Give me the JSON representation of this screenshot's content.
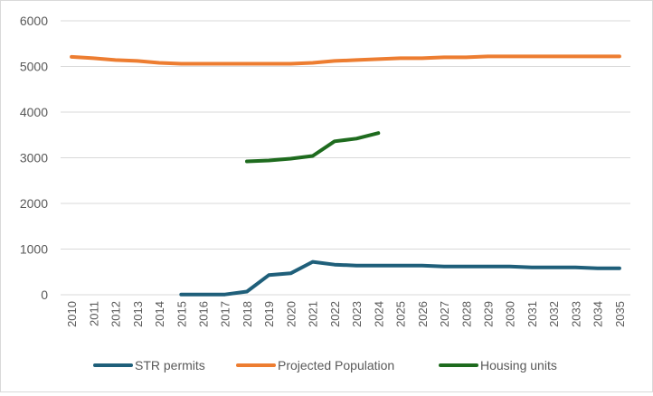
{
  "chart_data": {
    "type": "line",
    "title": "",
    "xlabel": "",
    "ylabel": "",
    "ylim": [
      0,
      6000
    ],
    "y_ticks": [
      "0",
      "1000",
      "2000",
      "3000",
      "4000",
      "5000",
      "6000"
    ],
    "categories": [
      "2010",
      "2011",
      "2012",
      "2013",
      "2014",
      "2015",
      "2016",
      "2017",
      "2018",
      "2019",
      "2020",
      "2021",
      "2022",
      "2023",
      "2024",
      "2025",
      "2026",
      "2027",
      "2028",
      "2029",
      "2030",
      "2031",
      "2032",
      "2033",
      "2034",
      "2035"
    ],
    "grid": "horizontal",
    "legend_position": "bottom",
    "series": [
      {
        "name": "STR permits",
        "color": "#1f5f7a",
        "values": [
          null,
          null,
          null,
          null,
          null,
          5,
          5,
          5,
          70,
          430,
          470,
          720,
          660,
          640,
          640,
          640,
          640,
          620,
          620,
          620,
          620,
          600,
          600,
          600,
          580,
          580
        ]
      },
      {
        "name": "Projected Population",
        "color": "#ed7d31",
        "values": [
          5210,
          5180,
          5140,
          5120,
          5080,
          5060,
          5060,
          5060,
          5060,
          5060,
          5060,
          5080,
          5120,
          5140,
          5160,
          5180,
          5180,
          5200,
          5200,
          5220,
          5220,
          5220,
          5220,
          5220,
          5220,
          5220
        ]
      },
      {
        "name": "Housing units",
        "color": "#1e6b1e",
        "values": [
          null,
          null,
          null,
          null,
          null,
          null,
          null,
          null,
          2920,
          2940,
          2980,
          3040,
          3360,
          3420,
          3540,
          null,
          null,
          null,
          null,
          null,
          null,
          null,
          null,
          null,
          null,
          null
        ]
      }
    ]
  }
}
